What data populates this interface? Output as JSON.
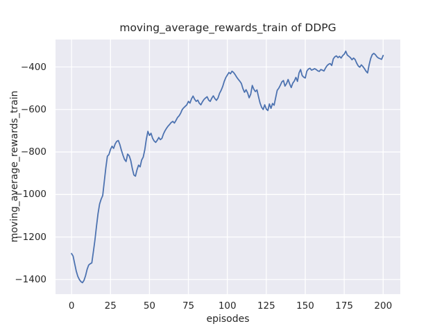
{
  "chart_data": {
    "type": "line",
    "title": "moving_average_rewards_train of DDPG",
    "xlabel": "episodes",
    "ylabel": "moving_average_rewards_train",
    "grid": true,
    "legend": false,
    "xlim": [
      -10.3,
      211.0
    ],
    "ylim": [
      -1469,
      -271
    ],
    "xticks": [
      0,
      25,
      50,
      75,
      100,
      125,
      150,
      175,
      200
    ],
    "yticks": [
      -400,
      -600,
      -800,
      -1000,
      -1200,
      -1400
    ],
    "style": {
      "axes_background": "#eaeaf2",
      "grid_color": "#ffffff",
      "line_color": "#4c72b0",
      "text_color": "#262626",
      "figure_background": "#ffffff"
    },
    "series": [
      {
        "name": "moving_average_rewards_train",
        "color": "#4c72b0",
        "x_start": 0,
        "x_step": 1,
        "y": [
          -1278,
          -1290,
          -1325,
          -1360,
          -1385,
          -1400,
          -1410,
          -1415,
          -1404,
          -1382,
          -1352,
          -1332,
          -1326,
          -1322,
          -1270,
          -1215,
          -1150,
          -1090,
          -1045,
          -1022,
          -1005,
          -940,
          -875,
          -820,
          -812,
          -788,
          -773,
          -783,
          -762,
          -750,
          -746,
          -765,
          -792,
          -815,
          -835,
          -845,
          -810,
          -818,
          -840,
          -878,
          -908,
          -914,
          -884,
          -862,
          -870,
          -838,
          -824,
          -790,
          -740,
          -703,
          -722,
          -712,
          -735,
          -748,
          -755,
          -745,
          -732,
          -742,
          -736,
          -715,
          -700,
          -688,
          -678,
          -670,
          -661,
          -656,
          -664,
          -652,
          -638,
          -630,
          -618,
          -601,
          -592,
          -585,
          -578,
          -562,
          -570,
          -550,
          -537,
          -552,
          -562,
          -556,
          -571,
          -578,
          -564,
          -553,
          -546,
          -540,
          -556,
          -562,
          -547,
          -536,
          -549,
          -557,
          -546,
          -524,
          -510,
          -492,
          -468,
          -450,
          -438,
          -426,
          -432,
          -420,
          -426,
          -436,
          -448,
          -458,
          -467,
          -478,
          -502,
          -519,
          -507,
          -522,
          -545,
          -528,
          -487,
          -505,
          -516,
          -508,
          -540,
          -570,
          -590,
          -600,
          -578,
          -598,
          -605,
          -574,
          -595,
          -572,
          -580,
          -545,
          -510,
          -500,
          -486,
          -470,
          -464,
          -490,
          -478,
          -459,
          -480,
          -497,
          -476,
          -466,
          -449,
          -468,
          -428,
          -412,
          -440,
          -448,
          -452,
          -420,
          -410,
          -406,
          -415,
          -412,
          -408,
          -412,
          -418,
          -421,
          -412,
          -415,
          -419,
          -405,
          -394,
          -387,
          -384,
          -393,
          -362,
          -352,
          -348,
          -356,
          -350,
          -358,
          -347,
          -340,
          -326,
          -344,
          -350,
          -356,
          -366,
          -358,
          -365,
          -382,
          -395,
          -401,
          -390,
          -398,
          -408,
          -420,
          -428,
          -390,
          -360,
          -342,
          -336,
          -342,
          -352,
          -358,
          -361,
          -364,
          -346
        ]
      }
    ]
  }
}
